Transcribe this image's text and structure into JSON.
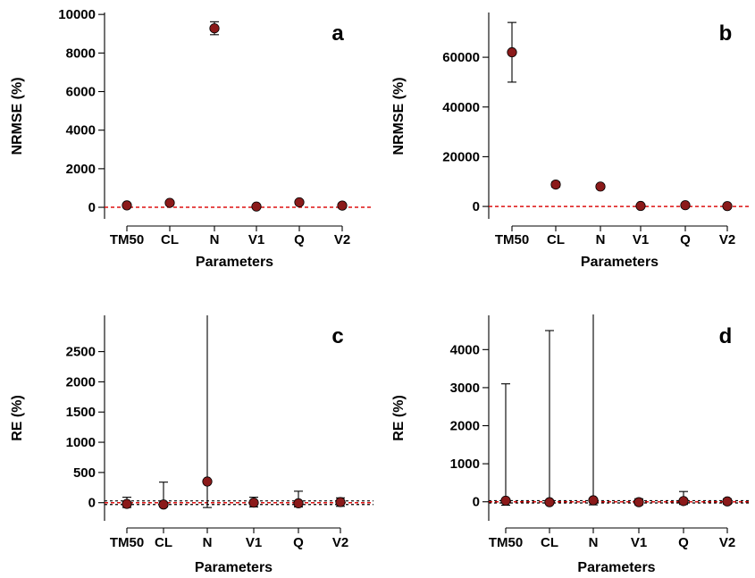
{
  "chart_data": [
    {
      "type": "scatter",
      "panel_label": "a",
      "xlabel": "Parameters",
      "ylabel": "NRMSE (%)",
      "categories": [
        "TM50",
        "CL",
        "N",
        "V1",
        "Q",
        "V2"
      ],
      "values": [
        100,
        230,
        9280,
        40,
        260,
        90
      ],
      "error_low": [
        30,
        150,
        8950,
        0,
        160,
        30
      ],
      "error_high": [
        180,
        320,
        9620,
        90,
        360,
        160
      ],
      "yticks": [
        0,
        2000,
        4000,
        6000,
        8000,
        10000
      ],
      "ylim": [
        -600,
        10100
      ],
      "reference_lines": [
        {
          "y": 0,
          "color": "#d11111",
          "style": "dashed"
        }
      ],
      "point_color": "#8b1a1a"
    },
    {
      "type": "scatter",
      "panel_label": "b",
      "xlabel": "Parameters",
      "ylabel": "NRMSE (%)",
      "categories": [
        "TM50",
        "CL",
        "N",
        "V1",
        "Q",
        "V2"
      ],
      "values": [
        62000,
        8800,
        8000,
        200,
        500,
        150
      ],
      "error_low": [
        50000,
        7800,
        7200,
        0,
        0,
        0
      ],
      "error_high": [
        74000,
        9800,
        8800,
        600,
        1100,
        400
      ],
      "yticks": [
        0,
        20000,
        40000,
        60000
      ],
      "ylim": [
        -5000,
        78000
      ],
      "reference_lines": [
        {
          "y": 0,
          "color": "#d11111",
          "style": "dashed"
        }
      ],
      "point_color": "#8b1a1a"
    },
    {
      "type": "scatter",
      "panel_label": "c",
      "xlabel": "Parameters",
      "ylabel": "RE (%)",
      "categories": [
        "TM50",
        "CL",
        "N",
        "V1",
        "Q",
        "V2"
      ],
      "values": [
        -20,
        -30,
        350,
        0,
        -10,
        10
      ],
      "error_low": [
        -80,
        -70,
        -80,
        -70,
        -70,
        -60
      ],
      "error_high": [
        90,
        340,
        3100,
        90,
        190,
        80
      ],
      "yticks": [
        0,
        500,
        1000,
        1500,
        2000,
        2500
      ],
      "ylim": [
        -300,
        3100
      ],
      "reference_lines": [
        {
          "y": 0,
          "color": "#d11111",
          "style": "dashed"
        },
        {
          "y": 30,
          "color": "#000000",
          "style": "dashed"
        },
        {
          "y": -30,
          "color": "#000000",
          "style": "dashed"
        }
      ],
      "point_color": "#8b1a1a"
    },
    {
      "type": "scatter",
      "panel_label": "d",
      "xlabel": "Parameters",
      "ylabel": "RE (%)",
      "categories": [
        "TM50",
        "CL",
        "N",
        "V1",
        "Q",
        "V2"
      ],
      "values": [
        30,
        -10,
        40,
        -10,
        20,
        10
      ],
      "error_low": [
        -90,
        -60,
        -80,
        -80,
        -70,
        -60
      ],
      "error_high": [
        3100,
        4500,
        5000,
        80,
        270,
        80
      ],
      "yticks": [
        0,
        1000,
        2000,
        3000,
        4000
      ],
      "ylim": [
        -500,
        4900
      ],
      "reference_lines": [
        {
          "y": 0,
          "color": "#d11111",
          "style": "dashed"
        },
        {
          "y": 30,
          "color": "#000000",
          "style": "dashed"
        },
        {
          "y": -30,
          "color": "#000000",
          "style": "dashed"
        }
      ],
      "point_color": "#8b1a1a"
    }
  ]
}
